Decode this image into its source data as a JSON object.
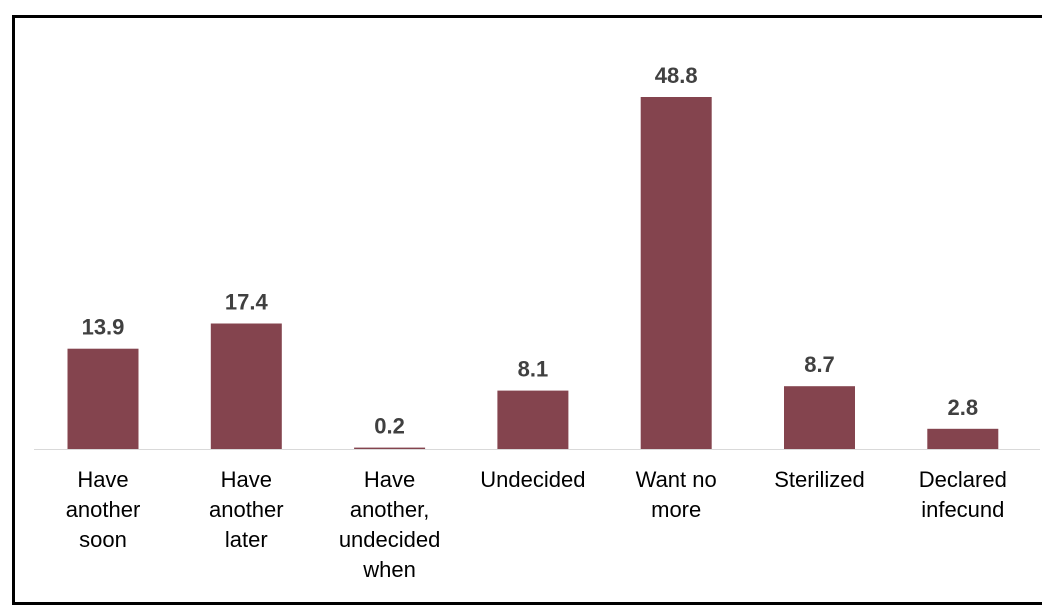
{
  "chart_data": {
    "type": "bar",
    "categories": [
      [
        "Have",
        "another",
        "soon"
      ],
      [
        "Have",
        "another",
        "later"
      ],
      [
        "Have",
        "another,",
        "undecided",
        "when"
      ],
      [
        "Undecided"
      ],
      [
        "Want no",
        "more"
      ],
      [
        "Sterilized"
      ],
      [
        "Declared",
        "infecund"
      ]
    ],
    "values": [
      13.9,
      17.4,
      0.2,
      8.1,
      48.8,
      8.7,
      2.8
    ],
    "value_labels": [
      "13.9",
      "17.4",
      "0.2",
      "8.1",
      "48.8",
      "8.7",
      "2.8"
    ],
    "bar_color": "#84444E",
    "value_label_color": "#404040",
    "ylim": [
      0,
      48.8
    ],
    "grid": false,
    "legend": "none"
  }
}
